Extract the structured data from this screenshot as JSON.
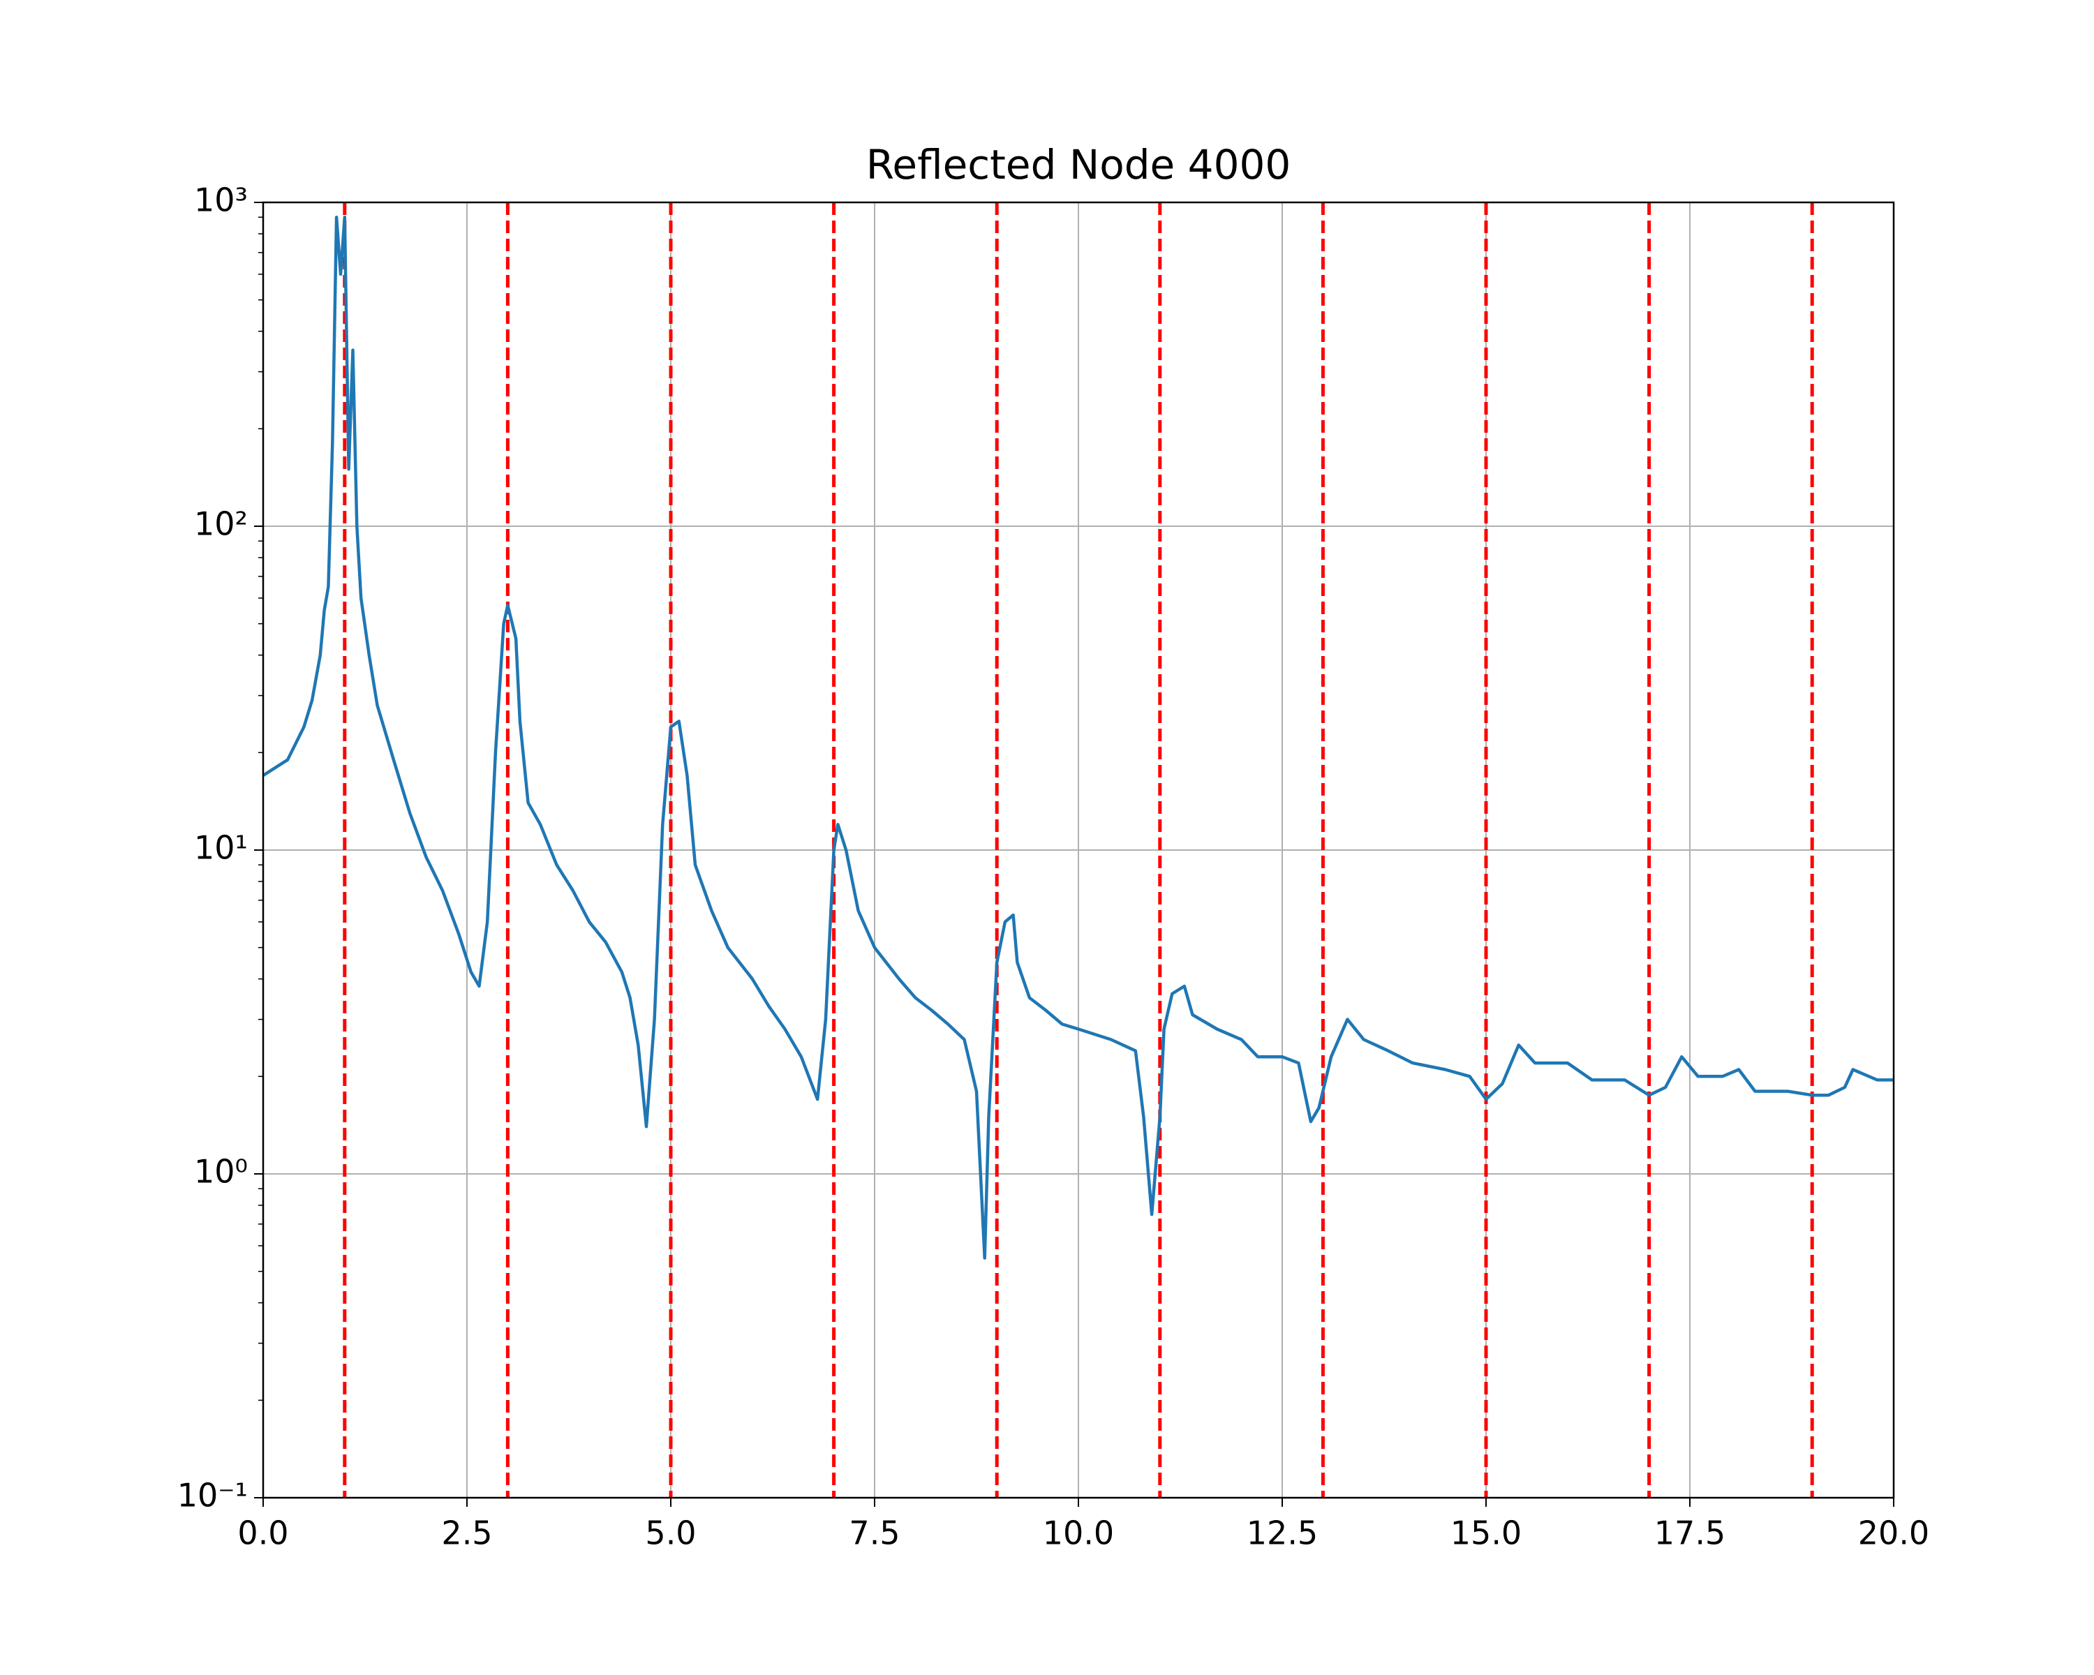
{
  "chart_data": {
    "type": "line",
    "title": "Reflected Node 4000",
    "x": [
      0,
      0.3,
      0.5,
      0.6,
      0.7,
      0.75,
      0.8,
      0.85,
      0.9,
      0.95,
      1.0,
      1.05,
      1.1,
      1.15,
      1.2,
      1.3,
      1.4,
      1.6,
      1.8,
      2.0,
      2.2,
      2.4,
      2.55,
      2.65,
      2.75,
      2.85,
      2.95,
      3.0,
      3.1,
      3.15,
      3.25,
      3.4,
      3.6,
      3.8,
      4.0,
      4.2,
      4.4,
      4.5,
      4.6,
      4.7,
      4.8,
      4.9,
      5.0,
      5.1,
      5.2,
      5.3,
      5.5,
      5.7,
      6.0,
      6.2,
      6.4,
      6.6,
      6.8,
      6.9,
      7.0,
      7.05,
      7.15,
      7.3,
      7.5,
      7.8,
      8.0,
      8.2,
      8.4,
      8.6,
      8.75,
      8.85,
      8.9,
      9.0,
      9.1,
      9.2,
      9.25,
      9.4,
      9.6,
      9.8,
      10.0,
      10.4,
      10.7,
      10.8,
      10.9,
      11.0,
      11.05,
      11.15,
      11.3,
      11.4,
      11.7,
      12.0,
      12.2,
      12.5,
      12.7,
      12.85,
      12.95,
      13.1,
      13.3,
      13.5,
      13.8,
      14.1,
      14.5,
      14.8,
      15.0,
      15.2,
      15.4,
      15.6,
      16.0,
      16.3,
      16.7,
      17.0,
      17.2,
      17.4,
      17.6,
      17.9,
      18.1,
      18.3,
      18.7,
      19.0,
      19.2,
      19.4,
      19.5,
      19.8,
      20.0
    ],
    "series": [
      {
        "color": "#1f77b4",
        "values": [
          17,
          19,
          24,
          29,
          40,
          55,
          65,
          180,
          900,
          600,
          900,
          150,
          350,
          100,
          60,
          40,
          28,
          19,
          13,
          9.5,
          7.5,
          5.5,
          4.2,
          3.8,
          6,
          20,
          50,
          57,
          45,
          25,
          14,
          12,
          9,
          7.5,
          6,
          5.2,
          4.2,
          3.5,
          2.5,
          1.4,
          3,
          12,
          24,
          25,
          17,
          9,
          6.5,
          5,
          4,
          3.3,
          2.8,
          2.3,
          1.7,
          3,
          10,
          12,
          10,
          6.5,
          5,
          4,
          3.5,
          3.2,
          2.9,
          2.6,
          1.8,
          0.55,
          1.5,
          4.5,
          6,
          6.3,
          4.5,
          3.5,
          3.2,
          2.9,
          2.8,
          2.6,
          2.4,
          1.5,
          0.75,
          1.5,
          2.8,
          3.6,
          3.8,
          3.1,
          2.8,
          2.6,
          2.3,
          2.3,
          2.2,
          1.45,
          1.6,
          2.3,
          3.0,
          2.6,
          2.4,
          2.2,
          2.1,
          2.0,
          1.7,
          1.9,
          2.5,
          2.2,
          2.2,
          1.95,
          1.95,
          1.75,
          1.85,
          2.3,
          2.0,
          2.0,
          2.1,
          1.8,
          1.8,
          1.75,
          1.75,
          1.85,
          2.1,
          1.95,
          1.95
        ]
      }
    ],
    "vlines": [
      1,
      3,
      5,
      7,
      9,
      11,
      13,
      15,
      17,
      19
    ],
    "vline_color": "#ff0000",
    "xlim": [
      0,
      20
    ],
    "xticks": [
      {
        "value": 0,
        "label": "0.0"
      },
      2.5,
      {
        "value": 5,
        "label": "5.0"
      },
      7.5,
      {
        "value": 10,
        "label": "10.0"
      },
      12.5,
      {
        "value": 15,
        "label": "15.0"
      },
      17.5,
      {
        "value": 20,
        "label": "20.0"
      }
    ],
    "ylim": [
      0.1,
      1000
    ],
    "yscale": "log",
    "yticks": [
      {
        "value": 0.1,
        "label": "10⁻¹"
      },
      {
        "value": 1,
        "label": "10⁰"
      },
      {
        "value": 10,
        "label": "10¹"
      },
      {
        "value": 100,
        "label": "10²"
      },
      {
        "value": 1000,
        "label": "10³"
      }
    ],
    "grid": true
  }
}
